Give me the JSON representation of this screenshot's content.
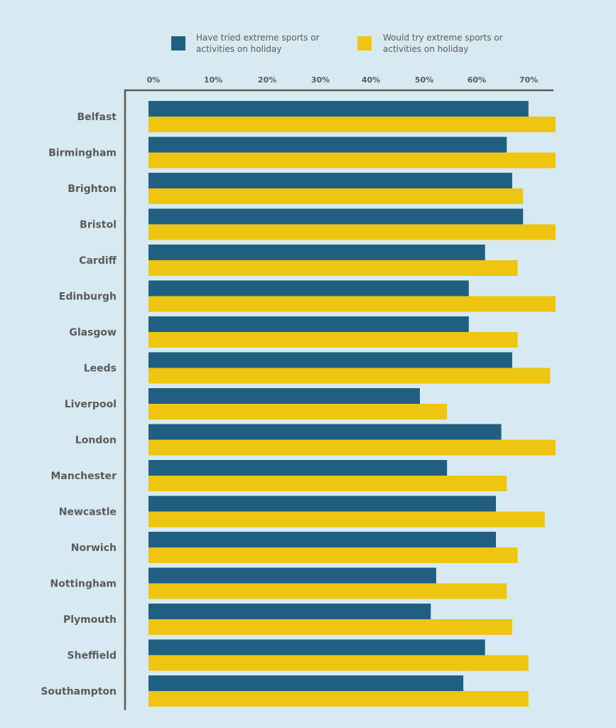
{
  "chart_data": {
    "type": "bar",
    "orientation": "horizontal",
    "title": "",
    "xlabel": "",
    "ylabel": "",
    "xlim": [
      0,
      75
    ],
    "x_ticks": [
      "0%",
      "10%",
      "20%",
      "30%",
      "40%",
      "50%",
      "60%",
      "70%"
    ],
    "x_tick_values": [
      0,
      10,
      20,
      30,
      40,
      50,
      60,
      70
    ],
    "grid": false,
    "legend_position": "top-center",
    "categories": [
      "Belfast",
      "Birmingham",
      "Brighton",
      "Bristol",
      "Cardiff",
      "Edinburgh",
      "Glasgow",
      "Leeds",
      "Liverpool",
      "London",
      "Manchester",
      "Newcastle",
      "Norwich",
      "Nottingham",
      "Plymouth",
      "Sheffield",
      "Southampton"
    ],
    "series": [
      {
        "name": "Have tried extreme sports or activities on holiday",
        "legend_lines": [
          "Have tried extreme sports or",
          "activities on holiday"
        ],
        "color": "#215f80",
        "values": [
          70,
          66,
          67,
          69,
          62,
          59,
          59,
          67,
          50,
          65,
          55,
          64,
          64,
          53,
          52,
          62,
          58
        ]
      },
      {
        "name": "Would try extreme sports or activities on holiday",
        "legend_lines": [
          "Would try extreme sports or",
          "activities on holiday"
        ],
        "color": "#eec511",
        "values": [
          75,
          75,
          69,
          75,
          68,
          75,
          68,
          74,
          55,
          75,
          66,
          73,
          68,
          66,
          67,
          70,
          70
        ]
      }
    ]
  },
  "colors": {
    "background": "#d7eaf2",
    "axis": "#5a5a5a",
    "text": "#5a5a5a"
  }
}
